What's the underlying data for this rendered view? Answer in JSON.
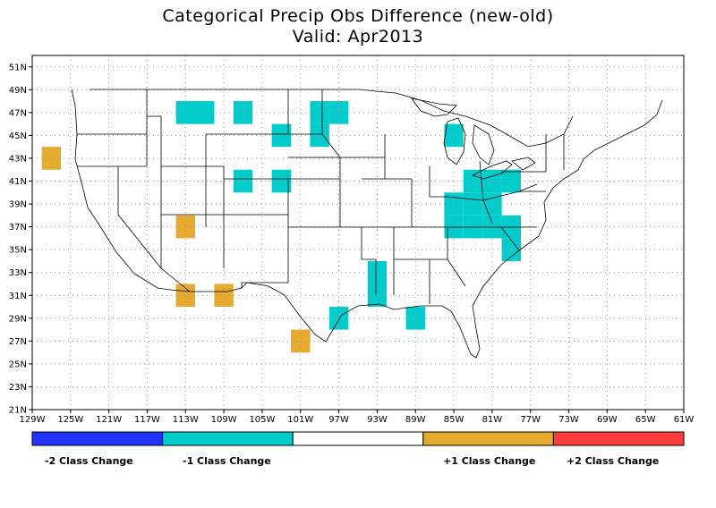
{
  "title": "Categorical Precip Obs Difference (new-old)",
  "subtitle": "Valid: Apr2013",
  "axes": {
    "lon_range": [
      -129,
      -61
    ],
    "lat_range": [
      21,
      52
    ],
    "x_ticks": [
      "129W",
      "125W",
      "121W",
      "117W",
      "113W",
      "109W",
      "105W",
      "101W",
      "97W",
      "93W",
      "89W",
      "85W",
      "81W",
      "77W",
      "73W",
      "69W",
      "65W",
      "61W"
    ],
    "y_ticks": [
      "21N",
      "23N",
      "25N",
      "27N",
      "29N",
      "31N",
      "33N",
      "35N",
      "37N",
      "39N",
      "41N",
      "43N",
      "45N",
      "47N",
      "49N",
      "51N"
    ],
    "grid": "dotted"
  },
  "colors": {
    "minus2": "#2233ff",
    "minus1": "#00cccc",
    "zero": "#ffffff",
    "plus1": "#e6aa2e",
    "plus2": "#ff3b3b",
    "outline": "#000000"
  },
  "legend": {
    "labels": [
      "-2 Class Change",
      "-1 Class Change",
      "+1 Class Change",
      "+2 Class Change"
    ]
  },
  "chart_data": {
    "type": "heatmap",
    "cell_size_deg": 2,
    "cells_minus1": [
      [
        -113,
        47
      ],
      [
        -111,
        47
      ],
      [
        -107,
        47
      ],
      [
        -103,
        45
      ],
      [
        -99,
        47
      ],
      [
        -99,
        45
      ],
      [
        -97,
        47
      ],
      [
        -107,
        41
      ],
      [
        -103,
        41
      ],
      [
        -93,
        33
      ],
      [
        -93,
        31
      ],
      [
        -97,
        29
      ],
      [
        -89,
        29
      ],
      [
        -85,
        45
      ],
      [
        -83,
        41
      ],
      [
        -81,
        41
      ],
      [
        -79,
        41
      ],
      [
        -85,
        39
      ],
      [
        -83,
        39
      ],
      [
        -81,
        39
      ],
      [
        -85,
        37
      ],
      [
        -83,
        37
      ],
      [
        -81,
        37
      ],
      [
        -79,
        37
      ],
      [
        -79,
        35
      ]
    ],
    "cells_plus1": [
      [
        -127,
        43
      ],
      [
        -113,
        37
      ],
      [
        -113,
        31
      ],
      [
        -109,
        31
      ],
      [
        -101,
        27
      ]
    ],
    "cells_minus2": [],
    "cells_plus2": []
  }
}
